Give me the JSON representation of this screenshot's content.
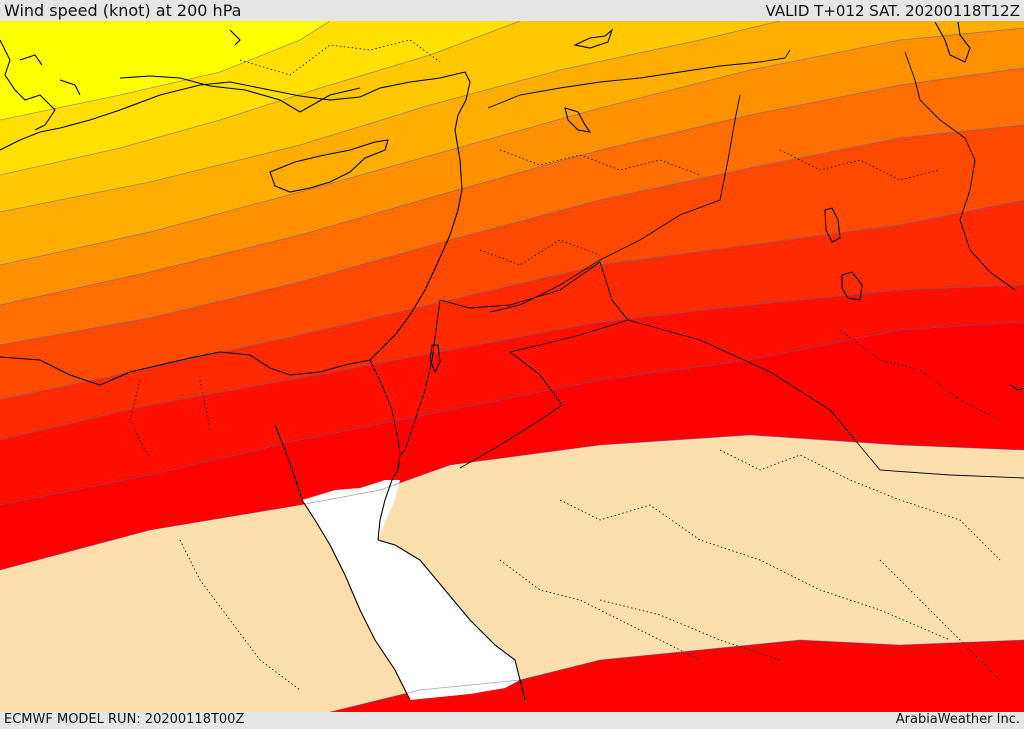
{
  "header": {
    "title": "Wind speed (knot) at 200 hPa",
    "valid_label": "VALID T+012 SAT. 20200118T12Z"
  },
  "footer": {
    "model_run": "ECMWF MODEL RUN: 20200118T00Z",
    "credit": "ArabiaWeather Inc."
  },
  "map": {
    "field": "wind-speed-200hPa",
    "palette": [
      "#ffff00",
      "#ffe000",
      "#ffc800",
      "#ffae00",
      "#ff9000",
      "#ff6e00",
      "#ff4a00",
      "#ff2a00",
      "#ff1000",
      "#ff0000",
      "#fddfae"
    ],
    "sea_color": "#ffffff",
    "border_color": "#000000",
    "contour_color": "#5050a0"
  }
}
